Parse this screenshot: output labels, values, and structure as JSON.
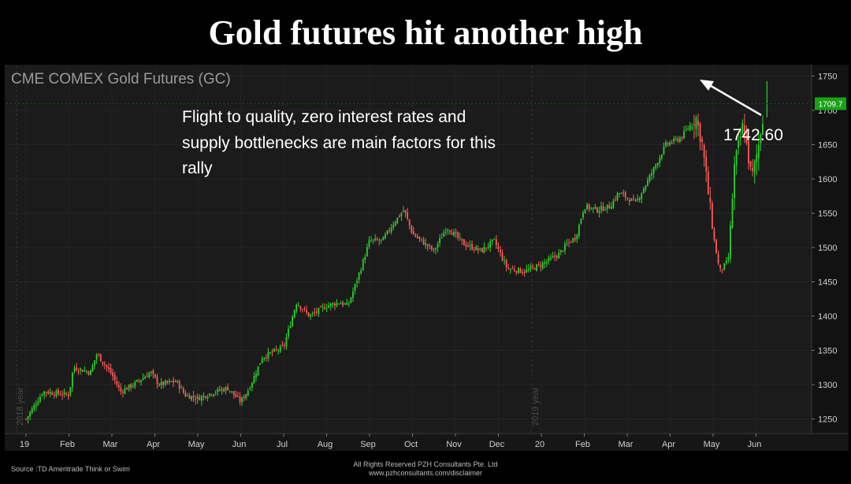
{
  "slide": {
    "title": "Gold futures hit another high",
    "footer_source": "Source :TD Ameritrade Think or Swim",
    "footer_rights_line1": "All Rights Reserved PZH Consultants Pte. Ltd",
    "footer_rights_line2": "www.pzhconsultants.com/disclaimer"
  },
  "chart_data": {
    "type": "candlestick",
    "title": "CME COMEX Gold Futures (GC)",
    "annotation_text_lines": [
      "Flight to quality, zero interest rates and",
      "supply bottlenecks are main factors for this",
      "rally"
    ],
    "callout_label": "1742.60",
    "last_price_label": "1709.7",
    "last_price": 1709.7,
    "peak_price": 1742.6,
    "year_markers": [
      "2018 year",
      "2019 year"
    ],
    "x_tick_labels": [
      "19",
      "Feb",
      "Mar",
      "Apr",
      "May",
      "Jun",
      "Jul",
      "Aug",
      "Sep",
      "Oct",
      "Nov",
      "Dec",
      "20",
      "Feb",
      "Mar",
      "Apr",
      "May",
      "Jun"
    ],
    "y_ticks": [
      1250,
      1300,
      1350,
      1400,
      1450,
      1500,
      1550,
      1600,
      1650,
      1700,
      1750
    ],
    "y_range": [
      1235,
      1760
    ],
    "x_range_months": [
      0,
      17.8
    ],
    "close_path": [
      [
        0.0,
        1250
      ],
      [
        0.4,
        1290
      ],
      [
        1.0,
        1285
      ],
      [
        1.1,
        1325
      ],
      [
        1.5,
        1318
      ],
      [
        1.65,
        1345
      ],
      [
        2.0,
        1315
      ],
      [
        2.2,
        1290
      ],
      [
        2.5,
        1300
      ],
      [
        2.9,
        1318
      ],
      [
        3.1,
        1300
      ],
      [
        3.5,
        1305
      ],
      [
        3.7,
        1285
      ],
      [
        4.0,
        1280
      ],
      [
        4.4,
        1290
      ],
      [
        4.7,
        1295
      ],
      [
        5.0,
        1275
      ],
      [
        5.2,
        1295
      ],
      [
        5.5,
        1340
      ],
      [
        6.0,
        1355
      ],
      [
        6.3,
        1420
      ],
      [
        6.6,
        1400
      ],
      [
        7.0,
        1415
      ],
      [
        7.3,
        1420
      ],
      [
        7.5,
        1415
      ],
      [
        7.8,
        1470
      ],
      [
        8.0,
        1510
      ],
      [
        8.3,
        1510
      ],
      [
        8.55,
        1535
      ],
      [
        8.8,
        1555
      ],
      [
        9.0,
        1520
      ],
      [
        9.5,
        1495
      ],
      [
        9.8,
        1530
      ],
      [
        10.2,
        1505
      ],
      [
        10.6,
        1495
      ],
      [
        10.9,
        1510
      ],
      [
        11.2,
        1470
      ],
      [
        11.6,
        1465
      ],
      [
        12.0,
        1475
      ],
      [
        12.4,
        1490
      ],
      [
        12.6,
        1505
      ],
      [
        12.8,
        1515
      ],
      [
        13.0,
        1560
      ],
      [
        13.3,
        1555
      ],
      [
        13.6,
        1560
      ],
      [
        13.8,
        1580
      ],
      [
        14.2,
        1565
      ],
      [
        14.5,
        1600
      ],
      [
        14.9,
        1650
      ],
      [
        15.25,
        1660
      ],
      [
        15.6,
        1690
      ],
      [
        15.75,
        1650
      ],
      [
        16.0,
        1520
      ],
      [
        16.15,
        1465
      ],
      [
        16.35,
        1480
      ],
      [
        16.5,
        1620
      ],
      [
        16.7,
        1680
      ],
      [
        16.9,
        1600
      ],
      [
        17.05,
        1645
      ],
      [
        17.2,
        1710
      ]
    ]
  }
}
